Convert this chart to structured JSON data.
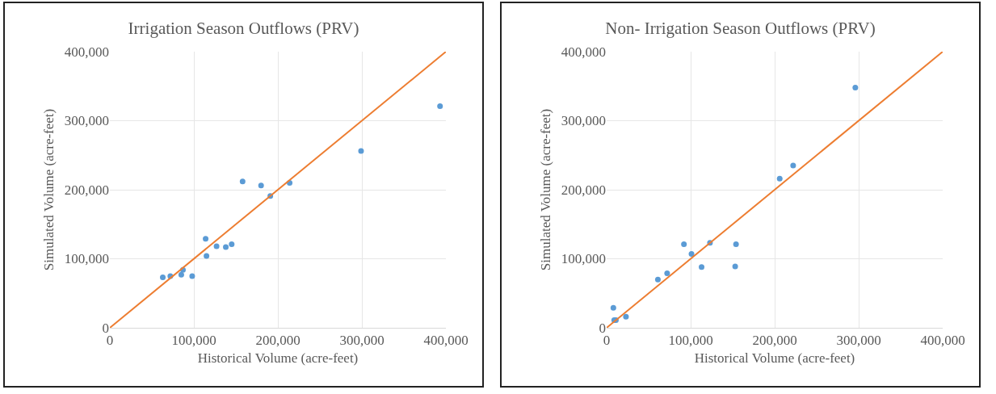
{
  "chart_data": [
    {
      "type": "scatter",
      "title": "Irrigation Season Outflows (PRV)",
      "xlabel": "Historical Volume (acre-feet)",
      "ylabel": "Simulated Volume (acre-feet)",
      "series": [
        {
          "color": "#5b9bd5",
          "marker": "circle",
          "x": [
            63000,
            72000,
            85000,
            87000,
            98000,
            114000,
            115000,
            127000,
            138000,
            145000,
            158000,
            180000,
            191000,
            214000,
            299000,
            393000
          ],
          "values": [
            73000,
            75000,
            77000,
            84000,
            75000,
            129000,
            104000,
            118000,
            117000,
            121000,
            212000,
            206000,
            191000,
            210000,
            256000,
            321000
          ]
        },
        {
          "type": "line",
          "color": "#ed7d31",
          "marker": "none",
          "x": [
            0,
            400000
          ],
          "values": [
            0,
            400000
          ]
        }
      ],
      "xlim": [
        0,
        400000
      ],
      "ylim": [
        0,
        400000
      ],
      "xticks": [
        {
          "value": 0,
          "label": "0"
        },
        {
          "value": 100000,
          "label": "100,000"
        },
        {
          "value": 200000,
          "label": "200,000"
        },
        {
          "value": 300000,
          "label": "300,000"
        },
        {
          "value": 400000,
          "label": "400,000"
        }
      ],
      "yticks": [
        {
          "value": 0,
          "label": "0"
        },
        {
          "value": 100000,
          "label": "100,000"
        },
        {
          "value": 200000,
          "label": "200,000"
        },
        {
          "value": 300000,
          "label": "300,000"
        },
        {
          "value": 400000,
          "label": "400,000"
        }
      ],
      "grid": true
    },
    {
      "type": "scatter",
      "title": "Non- Irrigation Season Outflows (PRV)",
      "xlabel": "Historical Volume (acre-feet)",
      "ylabel": "Simulated Volume (acre-feet)",
      "series": [
        {
          "color": "#5b9bd5",
          "marker": "circle",
          "x": [
            8000,
            9000,
            11000,
            23000,
            61000,
            72000,
            92000,
            101000,
            113000,
            123000,
            154000,
            153000,
            206000,
            222000,
            296000
          ],
          "values": [
            29000,
            11000,
            11000,
            16000,
            70000,
            79000,
            121000,
            107000,
            88000,
            123000,
            121000,
            89000,
            216000,
            235000,
            348000
          ]
        },
        {
          "type": "line",
          "color": "#ed7d31",
          "marker": "none",
          "x": [
            0,
            400000
          ],
          "values": [
            0,
            400000
          ]
        }
      ],
      "xlim": [
        0,
        400000
      ],
      "ylim": [
        0,
        400000
      ],
      "xticks": [
        {
          "value": 0,
          "label": "0"
        },
        {
          "value": 100000,
          "label": "100,000"
        },
        {
          "value": 200000,
          "label": "200,000"
        },
        {
          "value": 300000,
          "label": "300,000"
        },
        {
          "value": 400000,
          "label": "400,000"
        }
      ],
      "yticks": [
        {
          "value": 0,
          "label": "0"
        },
        {
          "value": 100000,
          "label": "100,000"
        },
        {
          "value": 200000,
          "label": "200,000"
        },
        {
          "value": 300000,
          "label": "300,000"
        },
        {
          "value": 400000,
          "label": "400,000"
        }
      ],
      "grid": true
    }
  ]
}
